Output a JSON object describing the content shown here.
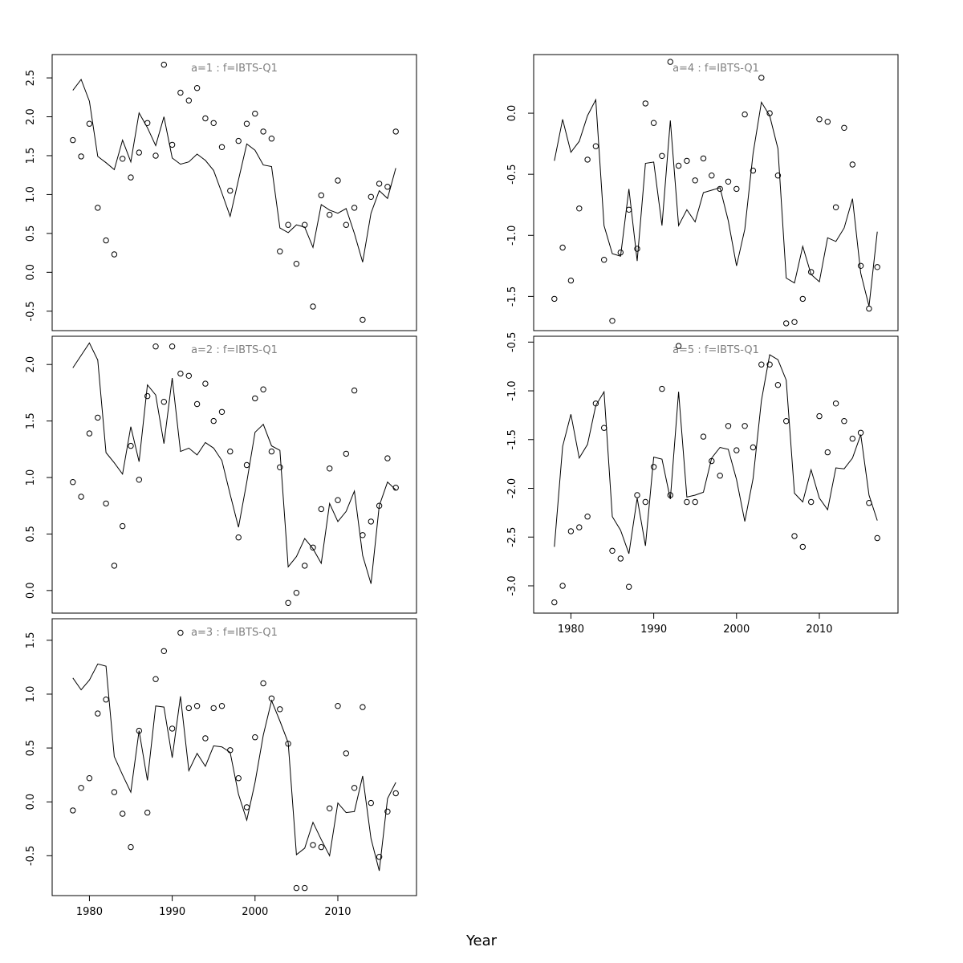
{
  "figure": {
    "xlabel": "Year"
  },
  "chart_data": [
    {
      "type": "line",
      "title": "a=1  :  f=IBTS-Q1",
      "x": [
        1978,
        1979,
        1980,
        1981,
        1982,
        1983,
        1984,
        1985,
        1986,
        1987,
        1988,
        1989,
        1990,
        1991,
        1992,
        1993,
        1994,
        1995,
        1996,
        1997,
        1998,
        1999,
        2000,
        2001,
        2002,
        2003,
        2004,
        2005,
        2006,
        2007,
        2008,
        2009,
        2010,
        2011,
        2012,
        2013,
        2014,
        2015,
        2016,
        2017
      ],
      "series": [
        {
          "kind": "points",
          "values": [
            1.7,
            1.49,
            1.91,
            0.83,
            0.41,
            0.23,
            1.46,
            1.22,
            1.54,
            1.92,
            1.5,
            2.67,
            1.64,
            2.31,
            2.21,
            2.37,
            1.98,
            1.92,
            1.61,
            1.05,
            1.69,
            1.91,
            2.04,
            1.81,
            1.72,
            0.27,
            0.61,
            0.11,
            0.61,
            -0.44,
            0.99,
            0.74,
            1.18,
            0.61,
            0.83,
            -0.61,
            0.97,
            1.14,
            1.1,
            1.81
          ]
        },
        {
          "kind": "line",
          "values": [
            2.34,
            2.48,
            2.2,
            1.49,
            1.41,
            1.32,
            1.7,
            1.42,
            2.05,
            1.86,
            1.63,
            2.0,
            1.47,
            1.39,
            1.42,
            1.52,
            1.44,
            1.31,
            1.02,
            0.72,
            1.19,
            1.65,
            1.57,
            1.38,
            1.36,
            0.57,
            0.51,
            0.61,
            0.58,
            0.32,
            0.87,
            0.8,
            0.76,
            0.82,
            0.5,
            0.13,
            0.76,
            1.05,
            0.95,
            1.34
          ]
        }
      ],
      "xlim": [
        1975.5,
        2019.5
      ],
      "ylim": [
        -0.75,
        2.8
      ],
      "yticks": [
        -0.5,
        0.0,
        0.5,
        1.0,
        1.5,
        2.0,
        2.5
      ],
      "ytick_labels": [
        "-0.5",
        "0.0",
        "0.5",
        "1.0",
        "1.5",
        "2.0",
        "2.5"
      ],
      "xticks": [],
      "xtick_labels": []
    },
    {
      "type": "line",
      "title": "a=2  :  f=IBTS-Q1",
      "x": [
        1978,
        1979,
        1980,
        1981,
        1982,
        1983,
        1984,
        1985,
        1986,
        1987,
        1988,
        1989,
        1990,
        1991,
        1992,
        1993,
        1994,
        1995,
        1996,
        1997,
        1998,
        1999,
        2000,
        2001,
        2002,
        2003,
        2004,
        2005,
        2006,
        2007,
        2008,
        2009,
        2010,
        2011,
        2012,
        2013,
        2014,
        2015,
        2016,
        2017
      ],
      "series": [
        {
          "kind": "points",
          "values": [
            0.96,
            0.83,
            1.39,
            1.53,
            0.77,
            0.22,
            0.57,
            1.28,
            0.98,
            1.72,
            2.16,
            1.67,
            2.16,
            1.92,
            1.9,
            1.65,
            1.83,
            1.5,
            1.58,
            1.23,
            0.47,
            1.11,
            1.7,
            1.78,
            1.23,
            1.09,
            -0.11,
            -0.02,
            0.22,
            0.38,
            0.72,
            1.08,
            0.8,
            1.21,
            1.77,
            0.49,
            0.61,
            0.75,
            1.17,
            0.91
          ]
        },
        {
          "kind": "line",
          "values": [
            1.97,
            2.08,
            2.19,
            2.04,
            1.22,
            1.13,
            1.03,
            1.45,
            1.14,
            1.82,
            1.73,
            1.3,
            1.88,
            1.23,
            1.26,
            1.2,
            1.31,
            1.26,
            1.15,
            0.85,
            0.56,
            0.96,
            1.4,
            1.47,
            1.28,
            1.24,
            0.21,
            0.3,
            0.46,
            0.37,
            0.24,
            0.77,
            0.61,
            0.7,
            0.88,
            0.31,
            0.06,
            0.75,
            0.96,
            0.89
          ]
        }
      ],
      "xlim": [
        1975.5,
        2019.5
      ],
      "ylim": [
        -0.2,
        2.25
      ],
      "yticks": [
        0.0,
        0.5,
        1.0,
        1.5,
        2.0
      ],
      "ytick_labels": [
        "0.0",
        "0.5",
        "1.0",
        "1.5",
        "2.0"
      ],
      "xticks": [],
      "xtick_labels": []
    },
    {
      "type": "line",
      "title": "a=3  :  f=IBTS-Q1",
      "x": [
        1978,
        1979,
        1980,
        1981,
        1982,
        1983,
        1984,
        1985,
        1986,
        1987,
        1988,
        1989,
        1990,
        1991,
        1992,
        1993,
        1994,
        1995,
        1996,
        1997,
        1998,
        1999,
        2000,
        2001,
        2002,
        2003,
        2004,
        2005,
        2006,
        2007,
        2008,
        2009,
        2010,
        2011,
        2012,
        2013,
        2014,
        2015,
        2016,
        2017
      ],
      "series": [
        {
          "kind": "points",
          "values": [
            -0.08,
            0.13,
            0.22,
            0.82,
            0.95,
            0.09,
            -0.11,
            -0.42,
            0.66,
            -0.1,
            1.14,
            1.4,
            0.68,
            1.57,
            0.87,
            0.89,
            0.59,
            0.87,
            0.89,
            0.48,
            0.22,
            -0.05,
            0.6,
            1.1,
            0.96,
            0.86,
            0.54,
            -0.8,
            -0.8,
            -0.4,
            -0.42,
            -0.06,
            0.89,
            0.45,
            0.13,
            0.88,
            -0.01,
            -0.51,
            -0.09,
            0.08
          ]
        },
        {
          "kind": "line",
          "values": [
            1.15,
            1.04,
            1.13,
            1.28,
            1.26,
            0.42,
            0.25,
            0.09,
            0.66,
            0.2,
            0.89,
            0.88,
            0.41,
            0.98,
            0.29,
            0.45,
            0.33,
            0.52,
            0.51,
            0.46,
            0.07,
            -0.17,
            0.18,
            0.62,
            0.94,
            0.75,
            0.55,
            -0.49,
            -0.43,
            -0.19,
            -0.35,
            -0.5,
            -0.01,
            -0.1,
            -0.09,
            0.24,
            -0.34,
            -0.64,
            0.03,
            0.18
          ]
        }
      ],
      "xlim": [
        1975.5,
        2019.5
      ],
      "ylim": [
        -0.87,
        1.7
      ],
      "yticks": [
        -0.5,
        0.0,
        0.5,
        1.0,
        1.5
      ],
      "ytick_labels": [
        "-0.5",
        "0.0",
        "0.5",
        "1.0",
        "1.5"
      ],
      "xticks": [
        1980,
        1990,
        2000,
        2010
      ],
      "xtick_labels": [
        "1980",
        "1990",
        "2000",
        "2010"
      ]
    },
    {
      "type": "line",
      "title": "a=4  :  f=IBTS-Q1",
      "x": [
        1978,
        1979,
        1980,
        1981,
        1982,
        1983,
        1984,
        1985,
        1986,
        1987,
        1988,
        1989,
        1990,
        1991,
        1992,
        1993,
        1994,
        1995,
        1996,
        1997,
        1998,
        1999,
        2000,
        2001,
        2002,
        2003,
        2004,
        2005,
        2006,
        2007,
        2008,
        2009,
        2010,
        2011,
        2012,
        2013,
        2014,
        2015,
        2016,
        2017
      ],
      "series": [
        {
          "kind": "points",
          "values": [
            -1.52,
            -1.1,
            -1.37,
            -0.78,
            -0.38,
            -0.27,
            -1.2,
            -1.7,
            -1.14,
            -0.79,
            -1.11,
            0.08,
            -0.08,
            -0.35,
            0.42,
            -0.43,
            -0.39,
            -0.55,
            -0.37,
            -0.51,
            -0.62,
            -0.56,
            -0.62,
            -0.01,
            -0.47,
            0.29,
            0.0,
            -0.51,
            -1.72,
            -1.71,
            -1.52,
            -1.3,
            -0.05,
            -0.07,
            -0.77,
            -0.12,
            -0.42,
            -1.25,
            -1.6,
            -1.26
          ]
        },
        {
          "kind": "line",
          "values": [
            -0.39,
            -0.05,
            -0.32,
            -0.23,
            -0.02,
            0.11,
            -0.92,
            -1.15,
            -1.17,
            -0.62,
            -1.21,
            -0.41,
            -0.4,
            -0.92,
            -0.06,
            -0.92,
            -0.79,
            -0.89,
            -0.65,
            -0.63,
            -0.61,
            -0.88,
            -1.25,
            -0.95,
            -0.33,
            0.09,
            -0.02,
            -0.29,
            -1.35,
            -1.39,
            -1.09,
            -1.32,
            -1.38,
            -1.02,
            -1.05,
            -0.94,
            -0.7,
            -1.31,
            -1.58,
            -0.97
          ]
        }
      ],
      "xlim": [
        1975.5,
        2019.5
      ],
      "ylim": [
        -1.78,
        0.48
      ],
      "yticks": [
        -1.5,
        -1.0,
        -0.5,
        0.0
      ],
      "ytick_labels": [
        "-1.5",
        "-1.0",
        "-0.5",
        "0.0"
      ],
      "xticks": [],
      "xtick_labels": []
    },
    {
      "type": "line",
      "title": "a=5  :  f=IBTS-Q1",
      "x": [
        1978,
        1979,
        1980,
        1981,
        1982,
        1983,
        1984,
        1985,
        1986,
        1987,
        1988,
        1989,
        1990,
        1991,
        1992,
        1993,
        1994,
        1995,
        1996,
        1997,
        1998,
        1999,
        2000,
        2001,
        2002,
        2003,
        2004,
        2005,
        2006,
        2007,
        2008,
        2009,
        2010,
        2011,
        2012,
        2013,
        2014,
        2015,
        2016,
        2017
      ],
      "series": [
        {
          "kind": "points",
          "values": [
            -3.17,
            -3.0,
            -2.44,
            -2.4,
            -2.29,
            -1.13,
            -1.38,
            -2.64,
            -2.72,
            -3.01,
            -2.07,
            -2.14,
            -1.78,
            -0.98,
            -2.07,
            -0.54,
            -2.14,
            -2.14,
            -1.47,
            -1.72,
            -1.87,
            -1.36,
            -1.61,
            -1.36,
            -1.58,
            -0.73,
            -0.73,
            -0.94,
            -1.31,
            -2.49,
            -2.6,
            -2.14,
            -1.26,
            -1.63,
            -1.13,
            -1.31,
            -1.49,
            -1.43,
            -2.15,
            -2.51
          ]
        },
        {
          "kind": "line",
          "values": [
            -2.6,
            -1.57,
            -1.24,
            -1.69,
            -1.55,
            -1.15,
            -1.01,
            -2.29,
            -2.43,
            -2.67,
            -2.1,
            -2.59,
            -1.68,
            -1.7,
            -2.11,
            -1.01,
            -2.09,
            -2.07,
            -2.04,
            -1.69,
            -1.58,
            -1.6,
            -1.91,
            -2.34,
            -1.9,
            -1.1,
            -0.63,
            -0.68,
            -0.89,
            -2.05,
            -2.14,
            -1.81,
            -2.1,
            -2.22,
            -1.79,
            -1.8,
            -1.69,
            -1.45,
            -2.07,
            -2.33
          ]
        }
      ],
      "xlim": [
        1975.5,
        2019.5
      ],
      "ylim": [
        -3.28,
        -0.44
      ],
      "yticks": [
        -3.0,
        -2.5,
        -2.0,
        -1.5,
        -1.0,
        -0.5
      ],
      "ytick_labels": [
        "-3.0",
        "-2.5",
        "-2.0",
        "-1.5",
        "-1.0",
        "-0.5"
      ],
      "xticks": [
        1980,
        1990,
        2000,
        2010
      ],
      "xtick_labels": [
        "1980",
        "1990",
        "2000",
        "2010"
      ]
    }
  ]
}
